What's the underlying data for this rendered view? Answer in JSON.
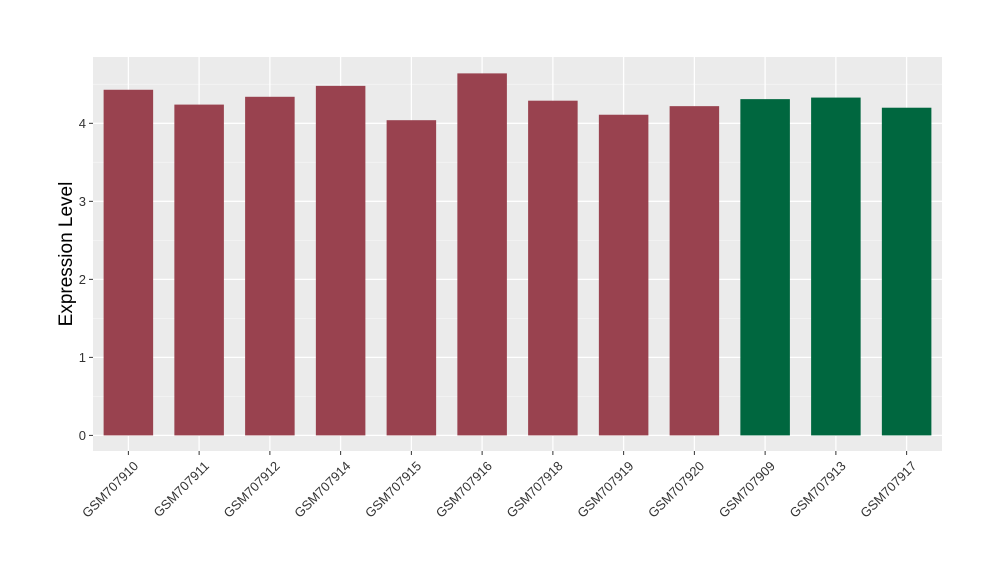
{
  "chart_data": {
    "type": "bar",
    "title": "",
    "xlabel": "",
    "ylabel": "Expression Level",
    "ylim": [
      -0.2,
      4.85
    ],
    "yticks": [
      0,
      1,
      2,
      3,
      4
    ],
    "grid": true,
    "legend": "none",
    "categories": [
      "GSM707910",
      "GSM707911",
      "GSM707912",
      "GSM707914",
      "GSM707915",
      "GSM707916",
      "GSM707918",
      "GSM707919",
      "GSM707920",
      "GSM707909",
      "GSM707913",
      "GSM707917"
    ],
    "values": [
      4.43,
      4.24,
      4.34,
      4.48,
      4.04,
      4.64,
      4.29,
      4.11,
      4.22,
      4.31,
      4.33,
      4.2
    ],
    "groups": [
      "red",
      "red",
      "red",
      "red",
      "red",
      "red",
      "red",
      "red",
      "red",
      "green",
      "green",
      "green"
    ]
  },
  "colors": {
    "red": "#99424f",
    "green": "#00673f",
    "panel": "#ebebeb",
    "grid_major": "#ffffff",
    "grid_minor": "#f5f5f5",
    "tick": "#333333"
  }
}
